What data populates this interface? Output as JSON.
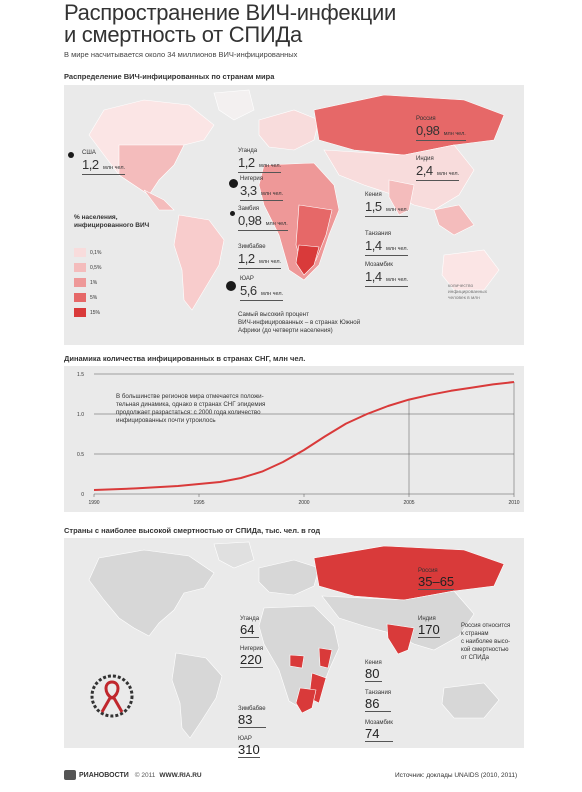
{
  "header": {
    "title_line1": "Распространение ВИЧ-инфекции",
    "title_line2": "и смертность от СПИДа",
    "subtitle": "В мире насчитывается около 34 миллионов ВИЧ-инфицированных"
  },
  "map1": {
    "section_title": "Распределение ВИЧ-инфицированных по странам мира",
    "legend_title_1": "% населения,",
    "legend_title_2": "инфицированного ВИЧ",
    "legend": [
      {
        "label": "0,1%",
        "color": "#f8dcdc"
      },
      {
        "label": "0,5%",
        "color": "#f4bcbc"
      },
      {
        "label": "1%",
        "color": "#ee9898"
      },
      {
        "label": "5%",
        "color": "#e66868"
      },
      {
        "label": "15%",
        "color": "#d93a3a"
      }
    ],
    "countries": [
      {
        "name": "США",
        "value": "1,2",
        "unit": "млн чел."
      },
      {
        "name": "Россия",
        "value": "0,98",
        "unit": "млн чел."
      },
      {
        "name": "Индия",
        "value": "2,4",
        "unit": "млн чел."
      },
      {
        "name": "Уганда",
        "value": "1,2",
        "unit": "млн чел."
      },
      {
        "name": "Нигерия",
        "value": "3,3",
        "unit": "млн чел."
      },
      {
        "name": "Замбия",
        "value": "0,98",
        "unit": "млн чел."
      },
      {
        "name": "Кения",
        "value": "1,5",
        "unit": "млн чел."
      },
      {
        "name": "Танзания",
        "value": "1,4",
        "unit": "млн чел."
      },
      {
        "name": "Зимбабве",
        "value": "1,2",
        "unit": "млн чел."
      },
      {
        "name": "Мозамбик",
        "value": "1,4",
        "unit": "млн чел."
      },
      {
        "name": "ЮАР",
        "value": "5,6",
        "unit": "млн чел."
      }
    ],
    "dot_note_1": "количество",
    "dot_note_2": "инфицированных",
    "dot_note_3": "человек в млн",
    "note_1": "Самый высокий процент",
    "note_2": "ВИЧ-инфицированных – в странах Южной",
    "note_3": "Африки (до четверти населения)"
  },
  "chart": {
    "section_title": "Динамика количества инфицированных в странах СНГ, млн чел.",
    "note_1": "В большинстве регионов мира отмечается положи-",
    "note_2": "тельная динамика, однако в странах СНГ эпидемия",
    "note_3": "продолжает разрастаться: с 2000 года количество",
    "note_4": "инфицированных почти утроилось"
  },
  "chart_data": {
    "type": "line",
    "title": "Динамика количества инфицированных в странах СНГ, млн чел.",
    "x": [
      1990,
      1992,
      1994,
      1996,
      1997,
      1998,
      1999,
      2000,
      2001,
      2002,
      2003,
      2004,
      2005,
      2006,
      2007,
      2008,
      2009,
      2010
    ],
    "series": [
      {
        "values": [
          0.05,
          0.07,
          0.1,
          0.15,
          0.2,
          0.28,
          0.4,
          0.55,
          0.72,
          0.88,
          1.0,
          1.1,
          1.18,
          1.24,
          1.29,
          1.33,
          1.37,
          1.4
        ]
      }
    ],
    "x_ticks": [
      "1990",
      "1995",
      "2000",
      "2005",
      "2010"
    ],
    "y_ticks": [
      "0",
      "0.5",
      "1.0",
      "1.5"
    ],
    "ylim": [
      0,
      1.5
    ],
    "xlim": [
      1990,
      2010
    ],
    "color": "#d93a3a"
  },
  "map2": {
    "section_title": "Страны с наиболее высокой смертностью от СПИДа, тыс. чел. в год",
    "countries": [
      {
        "name": "Россия",
        "value": "35–65"
      },
      {
        "name": "Индия",
        "value": "170"
      },
      {
        "name": "Уганда",
        "value": "64"
      },
      {
        "name": "Нигерия",
        "value": "220"
      },
      {
        "name": "Кения",
        "value": "80"
      },
      {
        "name": "Танзания",
        "value": "86"
      },
      {
        "name": "Зимбабве",
        "value": "83"
      },
      {
        "name": "Мозамбик",
        "value": "74"
      },
      {
        "name": "ЮАР",
        "value": "310"
      }
    ],
    "note_1": "Россия относится",
    "note_2": "к странам",
    "note_3": "с наиболее высо-",
    "note_4": "кой смертностью",
    "note_5": "от СПИДа"
  },
  "footer": {
    "brand": "РИАНОВОСТИ",
    "copyright": "© 2011",
    "site": "WWW.RIA.RU",
    "source": "Источник: доклады UNAIDS (2010, 2011)"
  }
}
